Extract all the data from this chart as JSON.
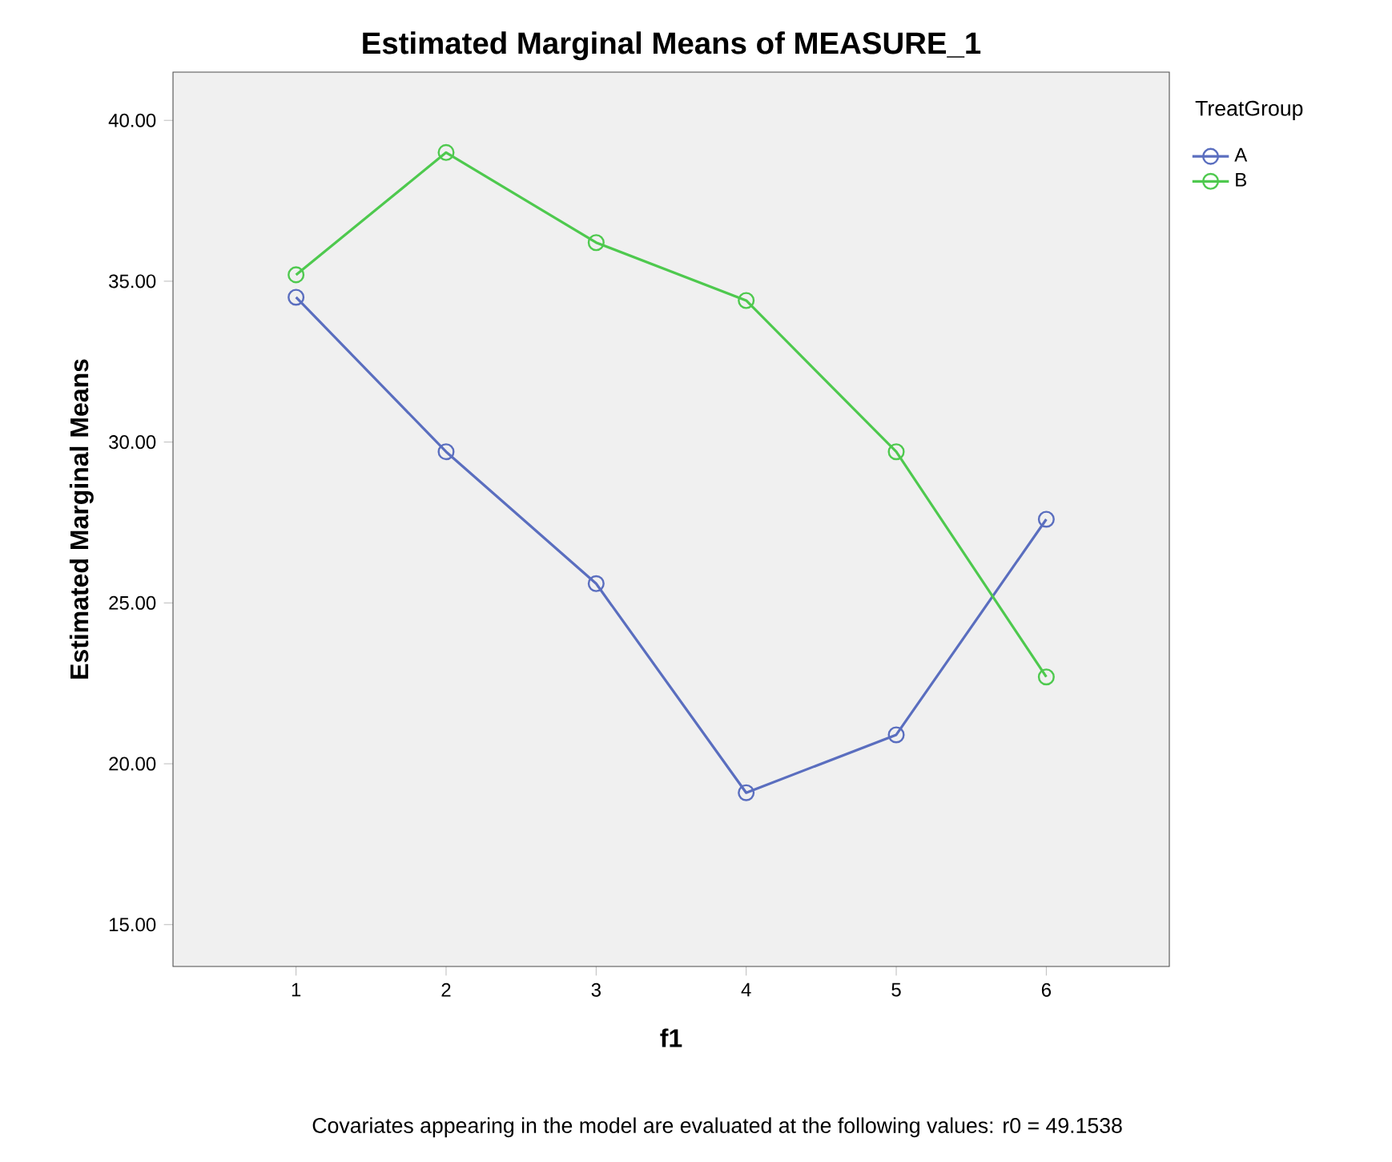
{
  "chart_data": {
    "type": "line",
    "title": "Estimated Marginal Means of MEASURE_1",
    "xlabel": "f1",
    "ylabel": "Estimated Marginal Means",
    "legend_title": "TreatGroup",
    "x": [
      1,
      2,
      3,
      4,
      5,
      6
    ],
    "series": [
      {
        "name": "A",
        "color": "#5a6ebf",
        "values": [
          34.5,
          29.7,
          25.6,
          19.1,
          20.9,
          27.6
        ]
      },
      {
        "name": "B",
        "color": "#4ec94e",
        "values": [
          35.2,
          39.0,
          36.2,
          34.4,
          29.7,
          22.7
        ]
      }
    ],
    "xlim": [
      0.18,
      6.82
    ],
    "xticks": [
      1,
      2,
      3,
      4,
      5,
      6
    ],
    "ylim": [
      13.7,
      41.5
    ],
    "yticks": [
      {
        "value": 15,
        "label": "15.00"
      },
      {
        "value": 20,
        "label": "20.00"
      },
      {
        "value": 25,
        "label": "25.00"
      },
      {
        "value": 30,
        "label": "30.00"
      },
      {
        "value": 35,
        "label": "35.00"
      },
      {
        "value": 40,
        "label": "40.00"
      }
    ],
    "marker": "circle",
    "grid": false,
    "legend": "right",
    "annotations": [
      "Covariates appearing in the model are evaluated at the following values: r0 = 49.1538"
    ]
  }
}
